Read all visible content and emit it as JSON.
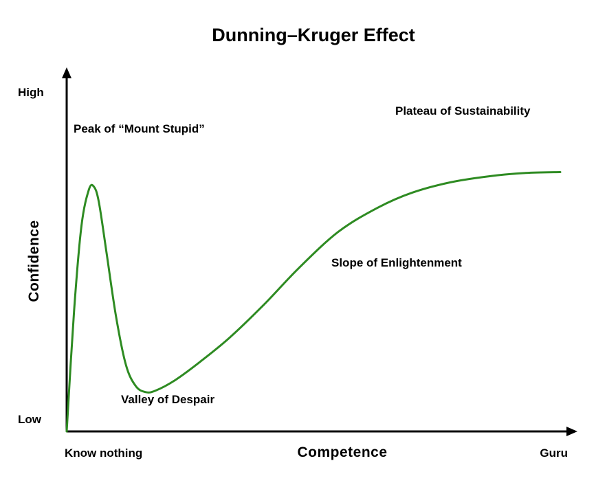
{
  "chart_data": {
    "type": "line",
    "title": "Dunning–Kruger Effect",
    "xlabel": "Competence",
    "ylabel": "Confidence",
    "x_ticks": {
      "start": "Know nothing",
      "end": "Guru"
    },
    "y_ticks": {
      "start": "Low",
      "end": "High"
    },
    "xlim": [
      0,
      100
    ],
    "ylim": [
      0,
      100
    ],
    "grid": false,
    "legend": "none",
    "line_color": "#2e8b22",
    "axis_color": "#000000",
    "series": [
      {
        "values": [
          [
            0,
            0
          ],
          [
            1.5,
            40
          ],
          [
            3,
            68
          ],
          [
            4.5,
            80
          ],
          [
            5.5,
            81
          ],
          [
            6.5,
            76
          ],
          [
            8,
            60
          ],
          [
            10,
            38
          ],
          [
            12,
            22
          ],
          [
            14,
            15
          ],
          [
            16,
            13
          ],
          [
            18,
            13.5
          ],
          [
            22,
            17
          ],
          [
            27,
            23
          ],
          [
            33,
            31
          ],
          [
            40,
            42
          ],
          [
            47,
            54
          ],
          [
            55,
            66
          ],
          [
            63,
            74
          ],
          [
            70,
            79
          ],
          [
            78,
            82.5
          ],
          [
            86,
            84.5
          ],
          [
            93,
            85.5
          ],
          [
            100,
            85.8
          ]
        ]
      }
    ],
    "annotations": [
      {
        "text": "Peak of “Mount Stupid”",
        "x": 5,
        "y": 87
      },
      {
        "text": "Valley of Despair",
        "x": 18,
        "y": 6
      },
      {
        "text": "Slope of Enlightenment",
        "x": 76,
        "y": 47
      },
      {
        "text": "Plateau of Sustainability",
        "x": 87,
        "y": 91
      }
    ]
  }
}
